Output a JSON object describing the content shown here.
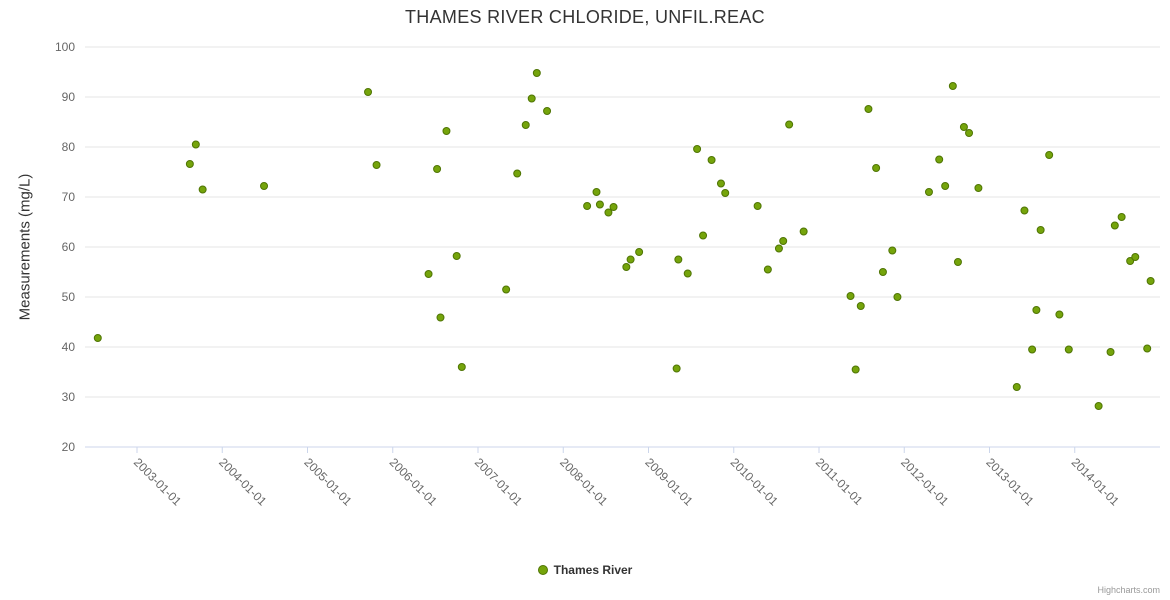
{
  "title": "THAMES RIVER CHLORIDE, UNFIL.REAC",
  "y_axis_title": "Measurements (mg/L)",
  "legend": {
    "label": "Thames River"
  },
  "credits": "Highcharts.com",
  "colors": {
    "point_fill": "#75a40b",
    "point_stroke": "#4f7504",
    "grid": "#e6e6e6",
    "axis_line": "#ccd6eb",
    "tick_mark": "#ccd6eb"
  },
  "chart_data": {
    "type": "scatter",
    "title": "THAMES RIVER CHLORIDE, UNFIL.REAC",
    "xlabel": "",
    "ylabel": "Measurements (mg/L)",
    "ylim": [
      20,
      100
    ],
    "y_tick_step": 10,
    "x_range": [
      2002.39,
      2015.0
    ],
    "grid": "horizontal",
    "legend_position": "bottom-center",
    "x_ticks": [
      {
        "label": "2003-01-01",
        "x": 2003
      },
      {
        "label": "2004-01-01",
        "x": 2004
      },
      {
        "label": "2005-01-01",
        "x": 2005
      },
      {
        "label": "2006-01-01",
        "x": 2006
      },
      {
        "label": "2007-01-01",
        "x": 2007
      },
      {
        "label": "2008-01-01",
        "x": 2008
      },
      {
        "label": "2009-01-01",
        "x": 2009
      },
      {
        "label": "2010-01-01",
        "x": 2010
      },
      {
        "label": "2011-01-01",
        "x": 2011
      },
      {
        "label": "2012-01-01",
        "x": 2012
      },
      {
        "label": "2013-01-01",
        "x": 2013
      },
      {
        "label": "2014-01-01",
        "x": 2014
      }
    ],
    "series": [
      {
        "name": "Thames River",
        "points": [
          [
            2002.54,
            41.8
          ],
          [
            2003.62,
            76.6
          ],
          [
            2003.69,
            80.5
          ],
          [
            2003.77,
            71.5
          ],
          [
            2004.49,
            72.2
          ],
          [
            2005.71,
            91.0
          ],
          [
            2005.81,
            76.4
          ],
          [
            2006.42,
            54.6
          ],
          [
            2006.52,
            75.6
          ],
          [
            2006.56,
            45.9
          ],
          [
            2006.63,
            83.2
          ],
          [
            2006.75,
            58.2
          ],
          [
            2006.81,
            36.0
          ],
          [
            2007.33,
            51.5
          ],
          [
            2007.46,
            74.7
          ],
          [
            2007.56,
            84.4
          ],
          [
            2007.63,
            89.7
          ],
          [
            2007.69,
            94.8
          ],
          [
            2007.81,
            87.2
          ],
          [
            2008.28,
            68.2
          ],
          [
            2008.39,
            71.0
          ],
          [
            2008.43,
            68.5
          ],
          [
            2008.53,
            66.9
          ],
          [
            2008.59,
            68.0
          ],
          [
            2008.74,
            56.0
          ],
          [
            2008.79,
            57.5
          ],
          [
            2008.89,
            59.0
          ],
          [
            2009.33,
            35.7
          ],
          [
            2009.35,
            57.5
          ],
          [
            2009.46,
            54.7
          ],
          [
            2009.57,
            79.6
          ],
          [
            2009.64,
            62.3
          ],
          [
            2009.74,
            77.4
          ],
          [
            2009.85,
            72.7
          ],
          [
            2009.9,
            70.8
          ],
          [
            2010.28,
            68.2
          ],
          [
            2010.4,
            55.5
          ],
          [
            2010.53,
            59.7
          ],
          [
            2010.58,
            61.2
          ],
          [
            2010.65,
            84.5
          ],
          [
            2010.82,
            63.1
          ],
          [
            2011.37,
            50.2
          ],
          [
            2011.43,
            35.5
          ],
          [
            2011.49,
            48.2
          ],
          [
            2011.58,
            87.6
          ],
          [
            2011.67,
            75.8
          ],
          [
            2011.75,
            55.0
          ],
          [
            2011.86,
            59.3
          ],
          [
            2011.92,
            50.0
          ],
          [
            2012.29,
            71.0
          ],
          [
            2012.41,
            77.5
          ],
          [
            2012.48,
            72.2
          ],
          [
            2012.57,
            92.2
          ],
          [
            2012.63,
            57.0
          ],
          [
            2012.7,
            84.0
          ],
          [
            2012.76,
            82.8
          ],
          [
            2012.87,
            71.8
          ],
          [
            2013.32,
            32.0
          ],
          [
            2013.41,
            67.3
          ],
          [
            2013.5,
            39.5
          ],
          [
            2013.55,
            47.4
          ],
          [
            2013.6,
            63.4
          ],
          [
            2013.7,
            78.4
          ],
          [
            2013.82,
            46.5
          ],
          [
            2013.93,
            39.5
          ],
          [
            2014.28,
            28.2
          ],
          [
            2014.42,
            39.0
          ],
          [
            2014.47,
            64.3
          ],
          [
            2014.55,
            66.0
          ],
          [
            2014.65,
            57.2
          ],
          [
            2014.71,
            58.0
          ],
          [
            2014.85,
            39.7
          ],
          [
            2014.89,
            53.2
          ]
        ]
      }
    ]
  }
}
